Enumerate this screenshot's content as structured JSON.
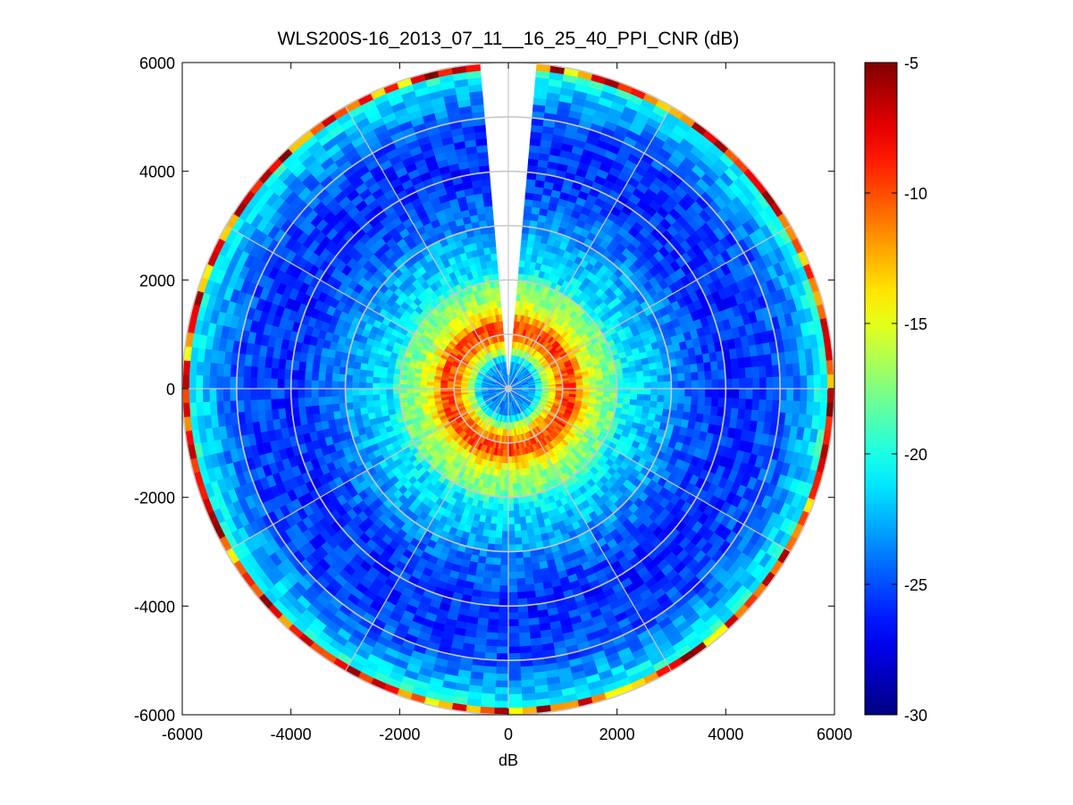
{
  "chart_data": {
    "type": "heatmap",
    "subtype": "polar-ppi",
    "title": "WLS200S-16_2013_07_11__16_25_40_PPI_CNR (dB)",
    "xlabel": "dB",
    "ylabel": "",
    "xlim": [
      -6000,
      6000
    ],
    "ylim": [
      -6000,
      6000
    ],
    "xticks": [
      -6000,
      -4000,
      -2000,
      0,
      2000,
      4000,
      6000
    ],
    "yticks": [
      6000,
      4000,
      2000,
      0,
      -2000,
      -4000,
      -6000
    ],
    "xtick_labels": [
      "-6000",
      "-4000",
      "-2000",
      "0",
      "2000",
      "4000",
      "6000"
    ],
    "ytick_labels": [
      "6000",
      "4000",
      "2000",
      "0",
      "-2000",
      "-4000",
      "-6000"
    ],
    "max_range": 6000,
    "grid": {
      "rings": [
        1000,
        2000,
        3000,
        4000,
        5000,
        6000
      ],
      "spokes_deg": [
        0,
        30,
        60,
        90,
        120,
        150,
        180,
        210,
        240,
        270,
        300,
        330
      ]
    },
    "missing_sector_deg": [
      -4,
      4
    ],
    "colormap": "jet",
    "colorbar": {
      "min": -30,
      "max": -5,
      "ticks": [
        -5,
        -10,
        -15,
        -20,
        -25,
        -30
      ],
      "tick_labels": [
        "-5",
        "-10",
        "-15",
        "-20",
        "-25",
        "-30"
      ]
    },
    "range_profile": [
      {
        "range": 0,
        "cnr": -24
      },
      {
        "range": 500,
        "cnr": -23
      },
      {
        "range": 700,
        "cnr": -16
      },
      {
        "range": 950,
        "cnr": -11
      },
      {
        "range": 1150,
        "cnr": -9
      },
      {
        "range": 1400,
        "cnr": -14
      },
      {
        "range": 1700,
        "cnr": -17
      },
      {
        "range": 2000,
        "cnr": -18
      },
      {
        "range": 2100,
        "cnr": -21
      },
      {
        "range": 2600,
        "cnr": -22
      },
      {
        "range": 3200,
        "cnr": -24
      },
      {
        "range": 4000,
        "cnr": -26
      },
      {
        "range": 5000,
        "cnr": -25
      },
      {
        "range": 5600,
        "cnr": -22
      },
      {
        "range": 5850,
        "cnr": -20
      },
      {
        "range": 6000,
        "cnr": -9
      }
    ]
  }
}
